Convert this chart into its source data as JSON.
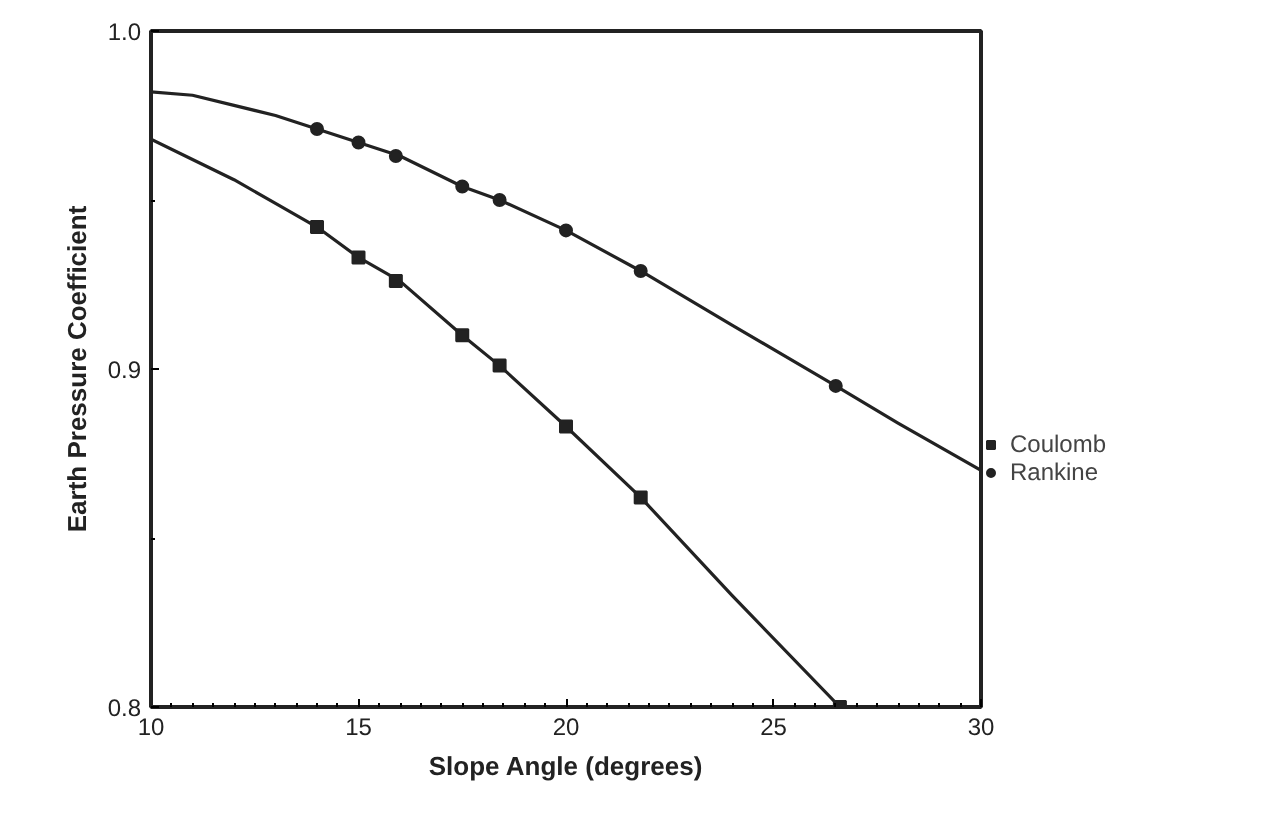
{
  "chart_data": {
    "type": "line",
    "xlabel": "Slope Angle (degrees)",
    "ylabel": "Earth Pressure Coefficient",
    "xlim": [
      10,
      30
    ],
    "ylim": [
      0.8,
      1.0
    ],
    "xticks": [
      10,
      15,
      20,
      25,
      30
    ],
    "yticks": [
      {
        "value": 0.8,
        "label": "0.8"
      },
      {
        "value": 0.9,
        "label": "0.9"
      },
      {
        "value": 1.0,
        "label": "1.0"
      }
    ],
    "grid": false,
    "legend": "right",
    "series": [
      {
        "color": "#222222",
        "marker": "none",
        "line_style": "solid",
        "x": [
          10,
          11,
          12,
          13,
          14,
          15,
          16,
          17.5,
          18.4,
          20,
          21.8,
          24,
          26.5,
          28,
          30
        ],
        "values": [
          0.982,
          0.981,
          0.978,
          0.975,
          0.971,
          0.967,
          0.963,
          0.954,
          0.95,
          0.941,
          0.929,
          0.913,
          0.895,
          0.884,
          0.87
        ]
      },
      {
        "color": "#222222",
        "marker": "none",
        "line_style": "solid",
        "x": [
          10,
          11,
          12,
          13,
          14,
          15,
          16,
          17.5,
          18.4,
          20,
          21.8,
          24,
          26.6
        ],
        "values": [
          0.968,
          0.962,
          0.956,
          0.949,
          0.942,
          0.933,
          0.926,
          0.91,
          0.901,
          0.883,
          0.862,
          0.833,
          0.8
        ]
      },
      {
        "type": "scatter",
        "name": "Coulomb",
        "color": "#222222",
        "marker": "square",
        "x": [
          14,
          15,
          15.9,
          17.5,
          18.4,
          20,
          21.8,
          26.6
        ],
        "values": [
          0.942,
          0.933,
          0.926,
          0.91,
          0.901,
          0.883,
          0.862,
          0.8
        ]
      },
      {
        "type": "scatter",
        "name": "Rankine",
        "color": "#222222",
        "marker": "circle",
        "x": [
          14,
          15,
          15.9,
          17.5,
          18.4,
          20,
          21.8,
          26.5
        ],
        "values": [
          0.971,
          0.967,
          0.963,
          0.954,
          0.95,
          0.941,
          0.929,
          0.895
        ]
      }
    ]
  }
}
